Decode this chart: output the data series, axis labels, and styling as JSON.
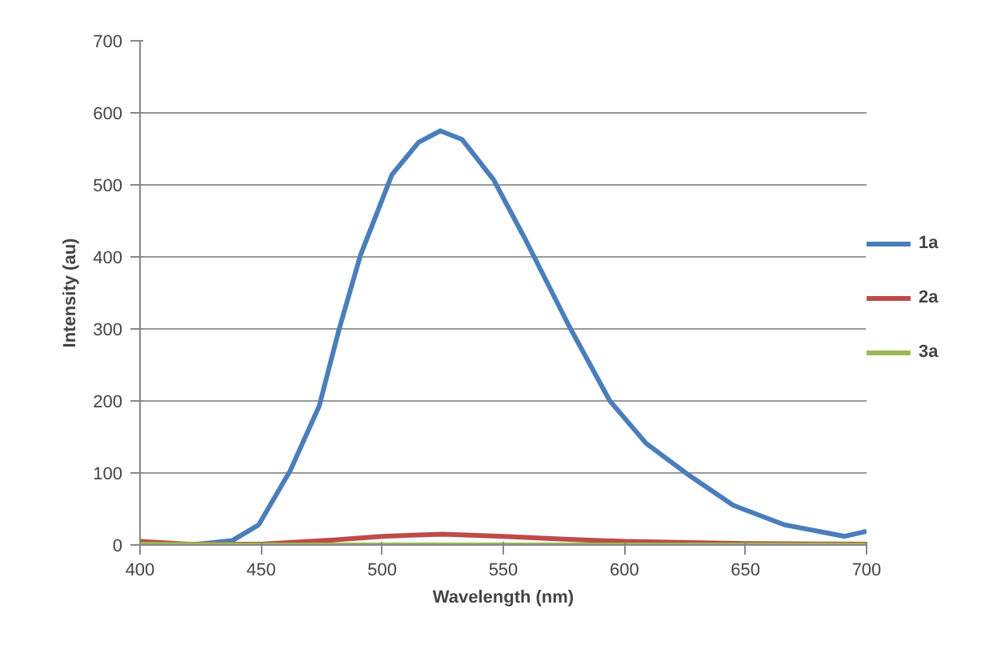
{
  "chart_data": {
    "type": "line",
    "xlabel": "Wavelength (nm)",
    "ylabel": "Intensity (au)",
    "xlim": [
      400,
      700
    ],
    "xticks": [
      400,
      450,
      500,
      550,
      600,
      650,
      700
    ],
    "ylim": [
      0,
      700
    ],
    "yticks": [
      0,
      100,
      200,
      300,
      400,
      500,
      600,
      700
    ],
    "grid": "y",
    "legend": "right",
    "marker": "none",
    "line_style": "solid",
    "series": [
      {
        "name": "1a",
        "color": "#4a7ebb",
        "x": [
          400,
          420,
          438,
          449,
          462,
          474,
          482,
          491,
          504,
          515,
          524,
          533,
          546,
          559,
          577,
          594,
          609,
          627,
          645,
          666,
          691,
          700
        ],
        "values": [
          0,
          0,
          6,
          28,
          103,
          193,
          297,
          402,
          514,
          559,
          575,
          563,
          507,
          425,
          305,
          200,
          141,
          96,
          55,
          28,
          12,
          19
        ]
      },
      {
        "name": "2a",
        "color": "#be4b48",
        "x": [
          400,
          420,
          450,
          480,
          500,
          525,
          550,
          575,
          600,
          650,
          700
        ],
        "values": [
          5,
          1,
          1,
          7,
          12,
          15,
          12,
          8,
          5,
          2,
          1
        ]
      },
      {
        "name": "3a",
        "color": "#98b954",
        "x": [
          400,
          450,
          500,
          550,
          600,
          650,
          700
        ],
        "values": [
          1,
          0,
          0,
          0,
          0,
          0,
          0
        ]
      }
    ]
  }
}
